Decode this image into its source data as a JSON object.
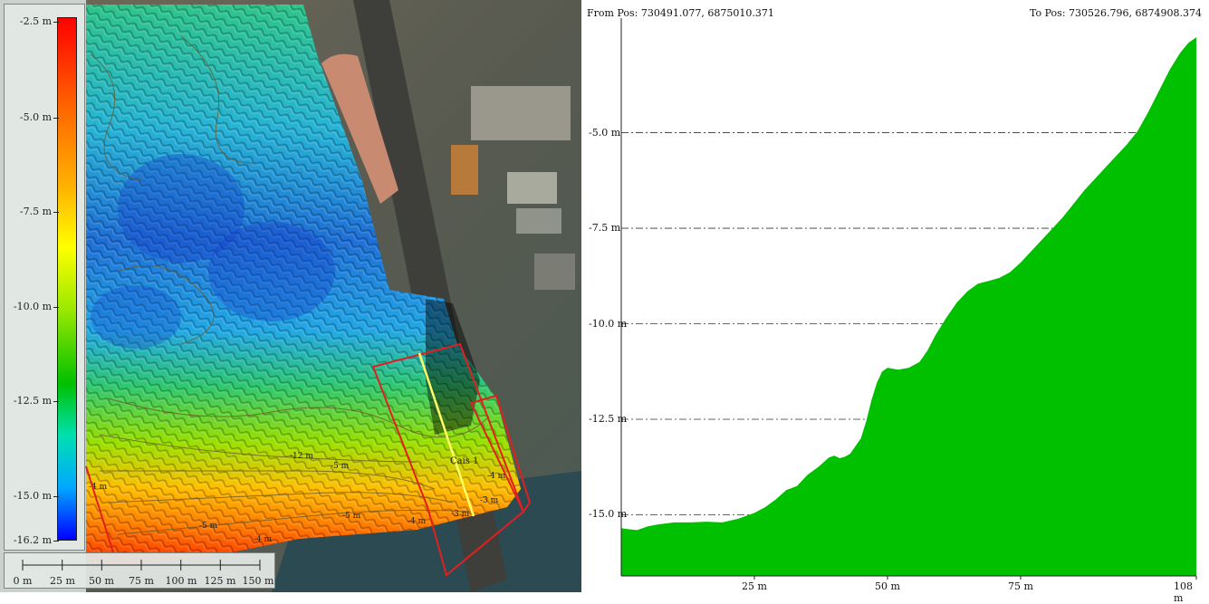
{
  "map": {
    "legend": {
      "labels": [
        "-2.5 m",
        "-5.0 m",
        "-7.5 m",
        "-10.0 m",
        "-12.5 m",
        "-15.0 m",
        "-16.2 m"
      ]
    },
    "scalebar": {
      "labels": [
        "0 m",
        "25 m",
        "50 m",
        "75 m",
        "100 m",
        "125 m",
        "150 m"
      ]
    },
    "annotations": {
      "zone_label": "Cais 1",
      "contours": [
        "-12 m",
        "-5 m",
        "-5 m",
        "-4 m",
        "-5 m",
        "-4 m",
        "-4 m",
        "-3 m",
        "-3 m",
        "-4 m"
      ]
    },
    "colors": {
      "profile_line": "#ffff66",
      "zone_outline": "#e02020"
    }
  },
  "profile": {
    "from_label": "From Pos: 730491.077, 6875010.371",
    "to_label": "To Pos: 730526.796, 6874908.374",
    "fill_color": "#00c000"
  },
  "chart_data": {
    "type": "area",
    "title": "",
    "xlabel": "",
    "ylabel": "",
    "x_tick_labels": [
      "25 m",
      "50 m",
      "75 m",
      "108 m"
    ],
    "y_tick_labels": [
      "-5.0 m",
      "-7.5 m",
      "-10.0 m",
      "-12.5 m",
      "-15.0 m"
    ],
    "xlim": [
      0,
      108
    ],
    "ylim": [
      -16.6,
      -2.0
    ],
    "grid": "horizontal dash-dot",
    "series": [
      {
        "x": [
          0,
          1.5,
          3,
          5,
          7,
          10,
          13,
          16,
          19,
          22,
          25,
          27,
          29,
          31,
          33,
          35,
          37,
          39,
          40,
          41,
          42,
          43,
          45,
          46,
          47,
          48,
          49,
          50,
          52,
          54,
          56,
          57.5,
          59,
          61,
          63,
          65,
          67,
          69,
          71,
          73,
          75,
          77,
          79,
          81,
          83,
          85,
          87,
          89,
          91,
          93,
          95,
          97,
          99,
          101,
          103,
          105,
          106.5,
          107.5,
          108
        ],
        "y": [
          -15.35,
          -15.38,
          -15.4,
          -15.3,
          -15.25,
          -15.2,
          -15.2,
          -15.18,
          -15.2,
          -15.1,
          -14.95,
          -14.8,
          -14.6,
          -14.35,
          -14.25,
          -13.95,
          -13.75,
          -13.5,
          -13.45,
          -13.52,
          -13.48,
          -13.4,
          -13.0,
          -12.55,
          -12.0,
          -11.55,
          -11.25,
          -11.15,
          -11.2,
          -11.15,
          -11.0,
          -10.7,
          -10.3,
          -9.85,
          -9.45,
          -9.15,
          -8.95,
          -8.88,
          -8.8,
          -8.65,
          -8.4,
          -8.1,
          -7.8,
          -7.5,
          -7.2,
          -6.85,
          -6.5,
          -6.2,
          -5.9,
          -5.6,
          -5.3,
          -4.95,
          -4.45,
          -3.9,
          -3.35,
          -2.9,
          -2.65,
          -2.55,
          -2.5
        ]
      }
    ]
  }
}
